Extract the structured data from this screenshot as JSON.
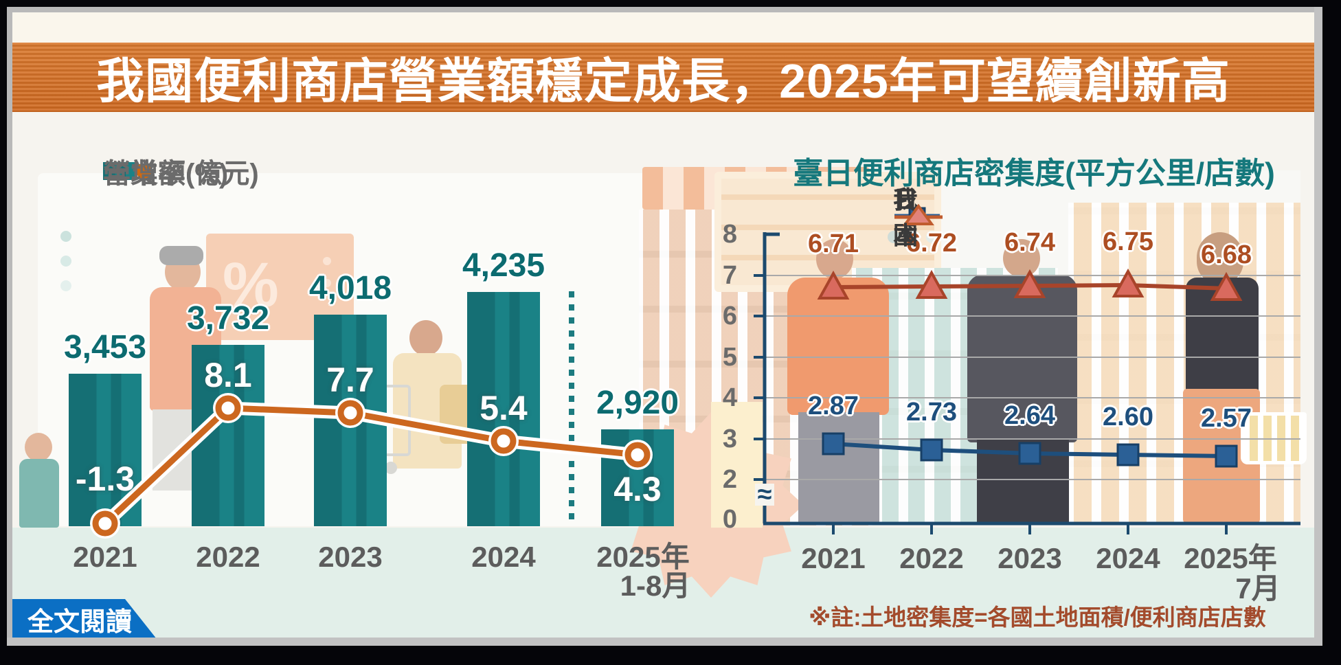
{
  "title": "我國便利商店營業額穩定成長，2025年可望續創新高",
  "footer": {
    "read_more": "全文閱讀",
    "note": "※註:土地密集度=各國土地面積/便利商店店數"
  },
  "colors": {
    "bar_teal": "#17797E",
    "value_teal": "#0C6B70",
    "growth_orange": "#CC671F",
    "title_band_orange": "#D4711F",
    "taiwan_blue": "#1E4F7D",
    "japan_red": "#A8442A",
    "mint_band": "#E2EFE9",
    "cream": "#FAF6EC",
    "button_blue": "#0B6FC4"
  },
  "left_chart": {
    "legend": [
      {
        "label": "營業額(億元)",
        "marker": "bar-swatch"
      },
      {
        "label": "年增率(%)",
        "marker": "dash-circle-swatch"
      }
    ],
    "chart_data": {
      "type": "bar",
      "categories": [
        "2021",
        "2022",
        "2023",
        "2024",
        "2025年 1-8月"
      ],
      "category_lines": [
        [
          "2021"
        ],
        [
          "2022"
        ],
        [
          "2023"
        ],
        [
          "2024"
        ],
        [
          "2025年",
          "1-8月"
        ]
      ],
      "series": [
        {
          "name": "營業額(億元)",
          "type": "bar",
          "values": [
            3453,
            3732,
            4018,
            4235,
            2920
          ],
          "labels": [
            "3,453",
            "3,732",
            "4,018",
            "4,235",
            "2,920"
          ]
        },
        {
          "name": "年增率(%)",
          "type": "line",
          "values": [
            -1.3,
            8.1,
            7.7,
            5.4,
            4.3
          ],
          "labels": [
            "-1.3",
            "8.1",
            "7.7",
            "5.4",
            "4.3"
          ]
        }
      ],
      "separator_after_index": 3,
      "ylabel": "",
      "xlabel": "",
      "grid": false
    }
  },
  "right_chart": {
    "title": "臺日便利商店密集度(平方公里/店數)",
    "legend": [
      {
        "label": "我國",
        "marker": "square"
      },
      {
        "label": "日本",
        "marker": "triangle"
      }
    ],
    "chart_data": {
      "type": "line",
      "categories": [
        "2021",
        "2022",
        "2023",
        "2024",
        "2025年 7月"
      ],
      "category_lines": [
        [
          "2021"
        ],
        [
          "2022"
        ],
        [
          "2023"
        ],
        [
          "2024"
        ],
        [
          "2025年",
          "7月"
        ]
      ],
      "y_ticks": [
        8,
        7,
        6,
        5,
        4,
        3,
        2,
        0
      ],
      "ylim": [
        0,
        8
      ],
      "axis_break": true,
      "grid": true,
      "series": [
        {
          "name": "我國",
          "marker": "square",
          "values": [
            2.87,
            2.73,
            2.64,
            2.6,
            2.57
          ],
          "labels": [
            "2.87",
            "2.73",
            "2.64",
            "2.60",
            "2.57"
          ]
        },
        {
          "name": "日本",
          "marker": "triangle",
          "values": [
            6.71,
            6.72,
            6.74,
            6.75,
            6.68
          ],
          "labels": [
            "6.71",
            "6.72",
            "6.74",
            "6.75",
            "6.68"
          ]
        }
      ]
    }
  }
}
